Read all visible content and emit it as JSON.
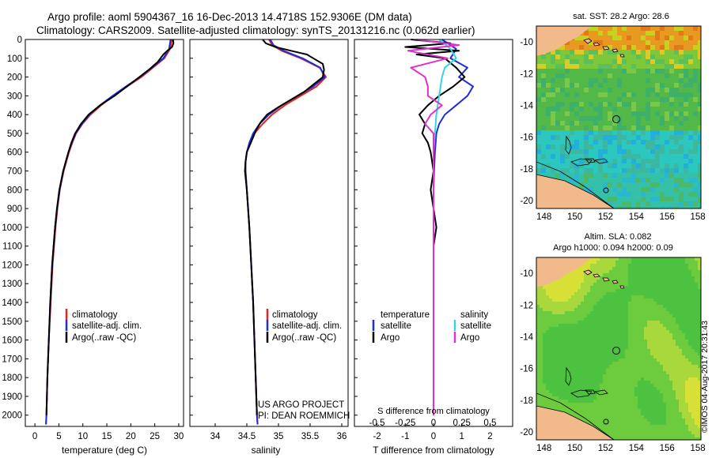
{
  "header": {
    "line1": "Argo profile: aoml 5904367_16 16-Dec-2013 14.4718S 152.9306E (DM data)",
    "line2": "Climatology: CARS2009. Satellite-adjusted climatology: synTS_20131216.nc (0.062d earlier)"
  },
  "colors": {
    "climatology": "#e8251c",
    "satellite": "#1c2ed8",
    "argo": "#000000",
    "satellite_s": "#33d6e0",
    "argo_s": "#e030d0"
  },
  "depth_ticks": [
    "0",
    "100",
    "200",
    "300",
    "400",
    "500",
    "600",
    "700",
    "800",
    "900",
    "1000",
    "1100",
    "1200",
    "1300",
    "1400",
    "1500",
    "1600",
    "1700",
    "1800",
    "1900",
    "2000"
  ],
  "chart_data": [
    {
      "type": "line",
      "name": "temperature",
      "xlabel": "temperature (deg C)",
      "ylabel": "depth",
      "xlim": [
        -2,
        31
      ],
      "ylim": [
        0,
        2060
      ],
      "xticks": [
        "0",
        "5",
        "10",
        "15",
        "20",
        "25",
        "30"
      ],
      "xtick_values": [
        0,
        5,
        10,
        15,
        20,
        25,
        30
      ],
      "legend": [
        "climatology",
        "satellite-adj. clim.",
        "Argo(..raw -QC)"
      ],
      "series": [
        {
          "name": "climatology",
          "color_key": "climatology",
          "depth": [
            0,
            50,
            100,
            150,
            200,
            250,
            300,
            350,
            400,
            450,
            500,
            550,
            600,
            700,
            800,
            900,
            1000,
            1200,
            1400,
            1600,
            1800,
            2000,
            2050
          ],
          "values": [
            28.6,
            28.2,
            27.0,
            24.6,
            22.2,
            19.2,
            16.4,
            13.8,
            11.6,
            9.9,
            8.6,
            7.8,
            7.1,
            6.0,
            5.2,
            4.7,
            4.3,
            3.7,
            3.3,
            2.9,
            2.6,
            2.4,
            2.3
          ]
        },
        {
          "name": "satellite-adj. clim.",
          "color_key": "satellite",
          "depth": [
            0,
            50,
            100,
            150,
            200,
            250,
            300,
            350,
            400,
            450,
            500,
            550,
            600,
            700,
            800,
            900,
            1000,
            1200,
            1400,
            1600,
            1800,
            2000,
            2050
          ],
          "values": [
            28.3,
            28.0,
            26.8,
            24.4,
            21.9,
            19.0,
            16.2,
            13.6,
            11.4,
            9.8,
            8.5,
            7.7,
            7.0,
            5.9,
            5.2,
            4.6,
            4.2,
            3.6,
            3.2,
            2.9,
            2.6,
            2.4,
            2.3
          ]
        },
        {
          "name": "Argo(..raw -QC)",
          "color_key": "argo",
          "depth": [
            0,
            20,
            40,
            60,
            80,
            120,
            160,
            200,
            250,
            300,
            350,
            400,
            450,
            500,
            550,
            600,
            700,
            800,
            900,
            1000,
            1200,
            1400,
            1600,
            1800,
            2000
          ],
          "values": [
            28.8,
            28.9,
            28.6,
            27.6,
            26.8,
            25.6,
            23.8,
            21.8,
            19.2,
            16.6,
            13.6,
            11.2,
            9.6,
            8.4,
            7.6,
            7.0,
            5.9,
            5.1,
            4.6,
            4.2,
            3.6,
            3.2,
            2.9,
            2.6,
            2.4
          ]
        }
      ]
    },
    {
      "type": "line",
      "name": "salinity",
      "xlabel": "salinity",
      "ylabel": "depth",
      "xlim": [
        33.6,
        36.1
      ],
      "ylim": [
        0,
        2060
      ],
      "xticks": [
        "34",
        "34.5",
        "35",
        "35.5",
        "36"
      ],
      "xtick_values": [
        34,
        34.5,
        35,
        35.5,
        36
      ],
      "legend": [
        "climatology",
        "satellite-adj. clim.",
        "Argo(..raw -QC)"
      ],
      "annotation": [
        "US ARGO PROJECT",
        "PI: DEAN ROEMMICH"
      ],
      "series": [
        {
          "name": "climatology",
          "color_key": "climatology",
          "depth": [
            0,
            30,
            60,
            100,
            150,
            200,
            250,
            300,
            350,
            400,
            450,
            500,
            550,
            600,
            650,
            700,
            800,
            900,
            1000,
            1200,
            1400,
            1600,
            1800,
            2000,
            2050
          ],
          "values": [
            34.85,
            34.9,
            35.05,
            35.35,
            35.65,
            35.75,
            35.6,
            35.35,
            35.1,
            34.9,
            34.75,
            34.62,
            34.55,
            34.5,
            34.48,
            34.48,
            34.5,
            34.52,
            34.54,
            34.57,
            34.6,
            34.62,
            34.64,
            34.66,
            34.67
          ]
        },
        {
          "name": "satellite-adj. clim.",
          "color_key": "satellite",
          "depth": [
            0,
            30,
            60,
            100,
            150,
            200,
            250,
            300,
            350,
            400,
            450,
            500,
            550,
            600,
            650,
            700,
            800,
            900,
            1000,
            1200,
            1400,
            1600,
            1800,
            2000,
            2050
          ],
          "values": [
            34.87,
            34.92,
            35.08,
            35.38,
            35.66,
            35.73,
            35.55,
            35.3,
            35.05,
            34.85,
            34.7,
            34.6,
            34.54,
            34.5,
            34.48,
            34.48,
            34.5,
            34.52,
            34.54,
            34.57,
            34.6,
            34.62,
            34.64,
            34.66,
            34.67
          ]
        },
        {
          "name": "Argo(..raw -QC)",
          "color_key": "argo",
          "depth": [
            0,
            20,
            40,
            60,
            80,
            100,
            130,
            160,
            200,
            240,
            280,
            320,
            360,
            400,
            440,
            480,
            520,
            560,
            600,
            650,
            700,
            800,
            900,
            1000,
            1200,
            1400,
            1600,
            1800,
            2000
          ],
          "values": [
            34.75,
            34.8,
            34.95,
            35.2,
            35.45,
            35.55,
            35.7,
            35.72,
            35.7,
            35.55,
            35.4,
            35.2,
            35.0,
            34.82,
            34.72,
            34.65,
            34.6,
            34.55,
            34.5,
            34.48,
            34.47,
            34.5,
            34.52,
            34.54,
            34.57,
            34.6,
            34.62,
            34.64,
            34.66
          ]
        }
      ]
    },
    {
      "type": "line",
      "name": "difference",
      "xlabel": "T difference from climatology",
      "xlabel_top": "S difference from climatology",
      "ylabel": "depth",
      "xlim": [
        -2.8,
        2.8
      ],
      "ylim": [
        0,
        2060
      ],
      "xticks": [
        "-2",
        "-1",
        "0",
        "1",
        "2"
      ],
      "xtick_values": [
        -2,
        -1,
        0,
        1,
        2
      ],
      "xticks_top": [
        "-0.5",
        "-0.25",
        "0",
        "0.25",
        "0.5"
      ],
      "xtick_top_values": [
        -2,
        -1,
        0,
        1,
        2
      ],
      "legend_left_title": "temperature",
      "legend_right_title": "salinity",
      "legend_left": [
        "satellite",
        "Argo"
      ],
      "legend_right": [
        "satellite",
        "Argo"
      ],
      "series": [
        {
          "name": "T satellite",
          "color_key": "satellite",
          "depth": [
            0,
            50,
            100,
            150,
            200,
            250,
            300,
            350,
            400,
            450,
            500,
            600,
            700,
            800,
            1000,
            1200,
            1500,
            2000
          ],
          "values": [
            0.3,
            0.8,
            0.6,
            1.2,
            0.9,
            1.4,
            1.2,
            0.8,
            0.4,
            0.2,
            0.1,
            0.05,
            0.02,
            0.0,
            0.0,
            0.0,
            0.0,
            0.0
          ]
        },
        {
          "name": "T Argo",
          "color_key": "argo",
          "depth": [
            0,
            20,
            40,
            60,
            80,
            100,
            150,
            200,
            250,
            300,
            350,
            400,
            450,
            500,
            550,
            600,
            700,
            800,
            900,
            1000,
            1100,
            1200,
            1500,
            2000
          ],
          "values": [
            -0.8,
            0.6,
            -1.0,
            0.9,
            -0.6,
            0.4,
            0.8,
            1.1,
            0.7,
            0.2,
            -0.2,
            -0.5,
            -0.3,
            -0.4,
            -0.2,
            -0.1,
            0.0,
            -0.1,
            0.0,
            0.1,
            0.0,
            0.0,
            0.0,
            0.0
          ]
        },
        {
          "name": "S satellite",
          "color_key": "satellite_s",
          "depth": [
            0,
            50,
            100,
            150,
            200,
            300,
            400,
            500,
            600,
            800,
            1000,
            1500,
            2000
          ],
          "values": [
            0.2,
            0.6,
            0.8,
            0.4,
            0.3,
            0.2,
            0.1,
            0.05,
            0.0,
            0.0,
            0.0,
            0.0,
            0.0
          ]
        },
        {
          "name": "S Argo",
          "color_key": "argo_s",
          "depth": [
            0,
            30,
            60,
            100,
            150,
            200,
            250,
            300,
            350,
            400,
            450,
            500,
            600,
            700,
            800,
            1000,
            1500,
            2000
          ],
          "values": [
            -0.6,
            0.9,
            -0.9,
            0.5,
            -0.8,
            -0.3,
            -0.2,
            -0.2,
            0.3,
            -0.1,
            -0.3,
            0.0,
            0.0,
            0.0,
            0.0,
            0.0,
            0.0,
            0.0
          ]
        }
      ]
    },
    {
      "type": "heatmap",
      "name": "sst-map",
      "title": "sat. SST: 28.2 Argo: 28.6",
      "xticks": [
        "148",
        "150",
        "152",
        "154",
        "156",
        "158"
      ],
      "yticks": [
        "-10",
        "-12",
        "-14",
        "-16",
        "-18",
        "-20"
      ],
      "xlim": [
        147.5,
        158.2
      ],
      "ylim": [
        -20.5,
        -9.0
      ],
      "argo_position": {
        "lon": 152.93,
        "lat": -14.47
      }
    },
    {
      "type": "heatmap",
      "name": "sla-map",
      "title": "Altim. SLA: 0.082",
      "subtitle": "Argo h1000: 0.094 h2000: 0.09",
      "xticks": [
        "148",
        "150",
        "152",
        "154",
        "156",
        "158"
      ],
      "yticks": [
        "-10",
        "-12",
        "-14",
        "-16",
        "-18",
        "-20"
      ],
      "xlim": [
        147.5,
        158.2
      ],
      "ylim": [
        -20.5,
        -9.0
      ],
      "argo_position": {
        "lon": 152.93,
        "lat": -14.47
      }
    }
  ],
  "side_label": "©IMOS 04-Aug-2017 20:31:43"
}
